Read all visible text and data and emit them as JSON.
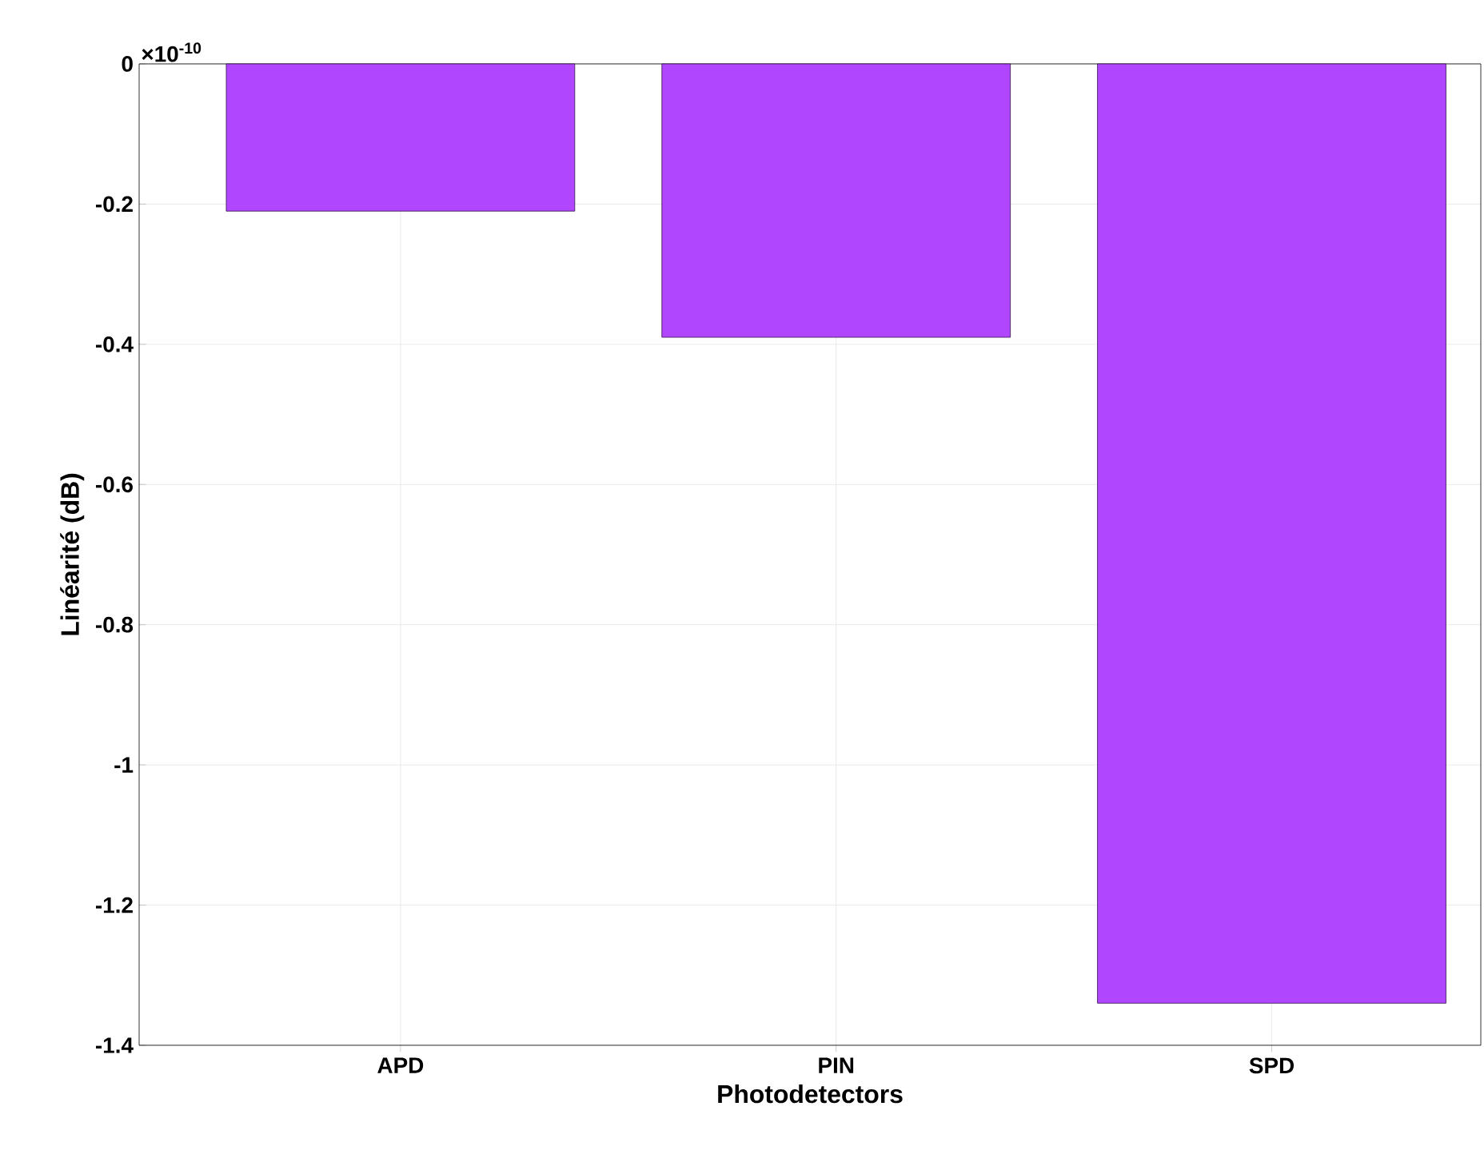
{
  "chart_data": {
    "type": "bar",
    "xlabel": "Photodetectors",
    "ylabel": "Linéarité (dB)",
    "categories": [
      "APD",
      "PIN",
      "SPD"
    ],
    "values": [
      -0.21,
      -0.39,
      -1.34
    ],
    "color": "#b146ff",
    "ylim": [
      -1.4,
      0
    ],
    "yticks": [
      -1.4,
      -1.2,
      -1,
      -0.8,
      -0.6,
      -0.4,
      -0.2,
      0
    ],
    "grid": true,
    "annotations": [
      "×10$^{-10}$"
    ]
  }
}
